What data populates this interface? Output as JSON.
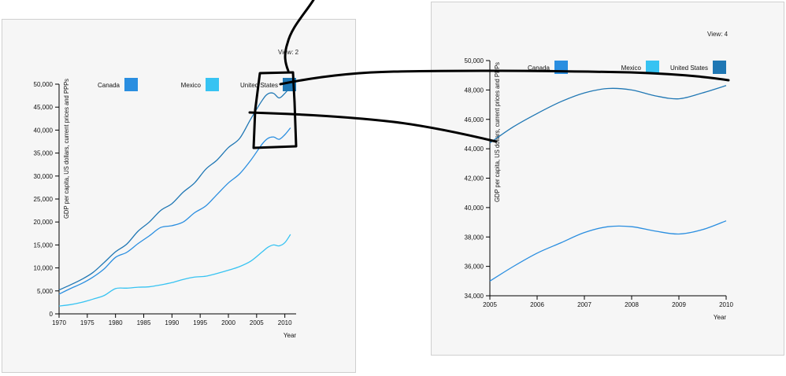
{
  "colors": {
    "canada": "#2a8ee0",
    "mexico": "#37c3f2",
    "united_states": "#1f77b4",
    "annotation": "#000000"
  },
  "views": {
    "left": {
      "label": "View: 2"
    },
    "right": {
      "label": "View: 4"
    }
  },
  "chart_data": [
    {
      "type": "line",
      "title": "",
      "xlabel": "Year",
      "ylabel": "GDP per capita, US dollars, current prices and PPPs",
      "xlim": [
        1970,
        2012
      ],
      "ylim": [
        0,
        50000
      ],
      "x_ticks": [
        "1970",
        "1975",
        "1980",
        "1985",
        "1990",
        "1995",
        "2000",
        "2005",
        "2010"
      ],
      "y_ticks": [
        "0",
        "5,000",
        "10,000",
        "15,000",
        "20,000",
        "25,000",
        "30,000",
        "35,000",
        "40,000",
        "45,000",
        "50,000"
      ],
      "legend": [
        "Canada",
        "Mexico",
        "United States"
      ],
      "legend_position": "top",
      "series": [
        {
          "name": "United States",
          "x": [
            1970,
            1972,
            1974,
            1976,
            1978,
            1980,
            1982,
            1984,
            1986,
            1988,
            1990,
            1992,
            1994,
            1996,
            1998,
            2000,
            2002,
            2004,
            2006,
            2007,
            2008,
            2009,
            2010,
            2011
          ],
          "y": [
            5200,
            6300,
            7500,
            9000,
            11200,
            13500,
            15200,
            18000,
            20000,
            22500,
            24000,
            26500,
            28500,
            31500,
            33500,
            36200,
            38200,
            42500,
            46500,
            47900,
            48000,
            47000,
            48000,
            49400
          ]
        },
        {
          "name": "Canada",
          "x": [
            1970,
            1972,
            1974,
            1976,
            1978,
            1980,
            1982,
            1984,
            1986,
            1988,
            1990,
            1992,
            1994,
            1996,
            1998,
            2000,
            2002,
            2004,
            2006,
            2007,
            2008,
            2009,
            2010,
            2011
          ],
          "y": [
            4300,
            5500,
            6600,
            8000,
            9800,
            12300,
            13400,
            15300,
            17000,
            18800,
            19200,
            20000,
            22000,
            23500,
            26000,
            28500,
            30500,
            33500,
            37000,
            38200,
            38500,
            38000,
            39000,
            40500
          ]
        },
        {
          "name": "Mexico",
          "x": [
            1970,
            1972,
            1974,
            1976,
            1978,
            1980,
            1982,
            1984,
            1986,
            1988,
            1990,
            1992,
            1994,
            1996,
            1998,
            2000,
            2002,
            2004,
            2006,
            2007,
            2008,
            2009,
            2010,
            2011
          ],
          "y": [
            1700,
            2000,
            2500,
            3200,
            4000,
            5500,
            5600,
            5800,
            5900,
            6300,
            6800,
            7500,
            8000,
            8200,
            8800,
            9500,
            10300,
            11500,
            13500,
            14500,
            15000,
            14800,
            15500,
            17300
          ]
        }
      ]
    },
    {
      "type": "line",
      "title": "",
      "xlabel": "Year",
      "ylabel": "GDP per capita, US dollars, current prices and PPPs",
      "xlim": [
        2005,
        2010
      ],
      "ylim": [
        34000,
        50000
      ],
      "x_ticks": [
        "2005",
        "2006",
        "2007",
        "2008",
        "2009",
        "2010"
      ],
      "y_ticks": [
        "34,000",
        "36,000",
        "38,000",
        "40,000",
        "42,000",
        "44,000",
        "46,000",
        "48,000",
        "50,000"
      ],
      "legend": [
        "Canada",
        "Mexico",
        "United States"
      ],
      "legend_position": "top",
      "series": [
        {
          "name": "United States",
          "x": [
            2005,
            2005.5,
            2006,
            2006.5,
            2007,
            2007.5,
            2008,
            2008.5,
            2009,
            2009.5,
            2010
          ],
          "y": [
            44400,
            45500,
            46400,
            47200,
            47800,
            48100,
            48000,
            47600,
            47400,
            47800,
            48300
          ]
        },
        {
          "name": "Canada",
          "x": [
            2005,
            2005.5,
            2006,
            2006.5,
            2007,
            2007.5,
            2008,
            2008.5,
            2009,
            2009.5,
            2010
          ],
          "y": [
            35000,
            36000,
            36900,
            37600,
            38300,
            38700,
            38700,
            38400,
            38200,
            38500,
            39100
          ]
        }
      ]
    }
  ]
}
